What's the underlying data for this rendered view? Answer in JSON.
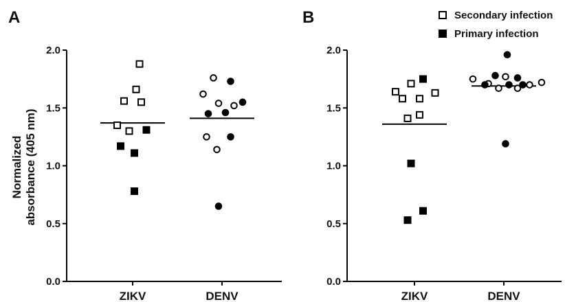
{
  "ylabel_lines": [
    "Normalized",
    "absorbance (405 nm)"
  ],
  "legend": [
    {
      "label": "Secondary infection",
      "marker": "square",
      "fill": "open"
    },
    {
      "label": "Primary infection",
      "marker": "square",
      "fill": "filled"
    }
  ],
  "colors": {
    "marker": "#000000",
    "background": "#ffffff"
  },
  "chart_data": [
    {
      "panel": "A",
      "type": "scatter",
      "title": "",
      "xlabel": "",
      "categories": [
        "ZIKV",
        "DENV"
      ],
      "ylim": [
        0.0,
        2.0
      ],
      "yticks": [
        "0.0",
        "0.5",
        "1.0",
        "1.5",
        "2.0"
      ],
      "series": [
        {
          "category": "ZIKV",
          "group": "Secondary infection",
          "marker": "square-open",
          "points": [
            [
              0.04,
              1.88
            ],
            [
              0.02,
              1.66
            ],
            [
              -0.05,
              1.56
            ],
            [
              0.05,
              1.55
            ],
            [
              -0.09,
              1.35
            ],
            [
              -0.02,
              1.3
            ]
          ]
        },
        {
          "category": "ZIKV",
          "group": "Primary infection",
          "marker": "square-filled",
          "points": [
            [
              0.08,
              1.31
            ],
            [
              -0.07,
              1.17
            ],
            [
              0.01,
              1.11
            ],
            [
              0.01,
              0.78
            ]
          ]
        },
        {
          "category": "DENV",
          "group": "Secondary infection",
          "marker": "circle-open",
          "points": [
            [
              -0.05,
              1.76
            ],
            [
              -0.11,
              1.62
            ],
            [
              -0.02,
              1.54
            ],
            [
              0.07,
              1.52
            ],
            [
              -0.09,
              1.25
            ],
            [
              -0.03,
              1.14
            ]
          ]
        },
        {
          "category": "DENV",
          "group": "Primary infection",
          "marker": "circle-filled",
          "points": [
            [
              0.05,
              1.73
            ],
            [
              0.12,
              1.55
            ],
            [
              -0.08,
              1.45
            ],
            [
              0.02,
              1.46
            ],
            [
              0.05,
              1.25
            ],
            [
              -0.02,
              0.65
            ]
          ]
        }
      ],
      "means": {
        "ZIKV": 1.37,
        "DENV": 1.41
      }
    },
    {
      "panel": "B",
      "type": "scatter",
      "title": "",
      "xlabel": "",
      "categories": [
        "ZIKV",
        "DENV"
      ],
      "ylim": [
        0.0,
        2.0
      ],
      "yticks": [
        "0.0",
        "0.5",
        "1.0",
        "1.5",
        "2.0"
      ],
      "series": [
        {
          "category": "ZIKV",
          "group": "Secondary infection",
          "marker": "square-open",
          "points": [
            [
              -0.02,
              1.71
            ],
            [
              -0.11,
              1.64
            ],
            [
              0.12,
              1.63
            ],
            [
              -0.07,
              1.58
            ],
            [
              0.03,
              1.58
            ],
            [
              0.03,
              1.44
            ],
            [
              -0.04,
              1.41
            ]
          ]
        },
        {
          "category": "ZIKV",
          "group": "Primary infection",
          "marker": "square-filled",
          "points": [
            [
              0.05,
              1.75
            ],
            [
              -0.02,
              1.02
            ],
            [
              0.05,
              0.61
            ],
            [
              -0.04,
              0.53
            ]
          ]
        },
        {
          "category": "DENV",
          "group": "Secondary infection",
          "marker": "circle-open",
          "points": [
            [
              -0.18,
              1.75
            ],
            [
              0.01,
              1.77
            ],
            [
              -0.09,
              1.71
            ],
            [
              -0.03,
              1.67
            ],
            [
              0.08,
              1.67
            ],
            [
              0.15,
              1.7
            ],
            [
              0.22,
              1.72
            ]
          ]
        },
        {
          "category": "DENV",
          "group": "Primary infection",
          "marker": "circle-filled",
          "points": [
            [
              0.02,
              1.96
            ],
            [
              -0.05,
              1.78
            ],
            [
              0.08,
              1.76
            ],
            [
              -0.11,
              1.7
            ],
            [
              0.03,
              1.7
            ],
            [
              0.11,
              1.7
            ],
            [
              0.01,
              1.19
            ]
          ]
        }
      ],
      "means": {
        "ZIKV": 1.36,
        "DENV": 1.69
      }
    }
  ]
}
